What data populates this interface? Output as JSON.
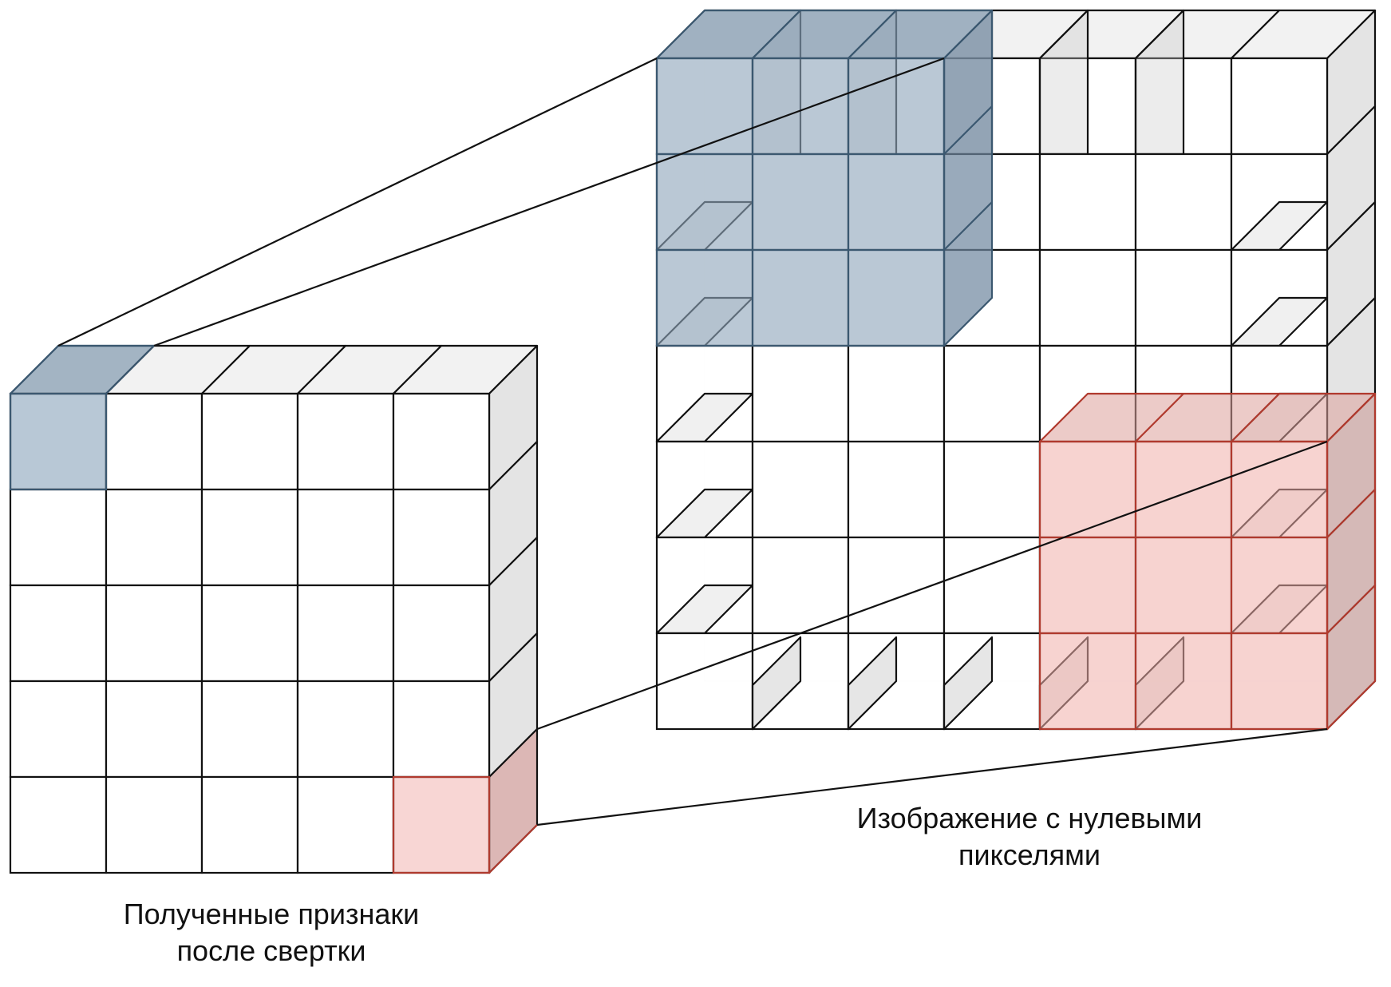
{
  "captions": {
    "output_line1": "Полученные признаки",
    "output_line2": "после свертки",
    "input_line1": "Изображение с нулевыми",
    "input_line2": "пикселями"
  },
  "diagram": {
    "output_grid": {
      "rows": 5,
      "cols": 5,
      "highlighted_cells": [
        [
          0,
          0
        ],
        [
          4,
          4
        ]
      ]
    },
    "input_grid": {
      "rows": 7,
      "cols": 7,
      "kernel_size": 3,
      "kernel_windows": [
        {
          "row": 0,
          "col": 0
        },
        {
          "row": 4,
          "col": 4
        }
      ]
    },
    "colors": {
      "line": "#111111",
      "face": "#ffffff",
      "side": "#e4e4e4",
      "top": "#f2f2f2",
      "blue_fill": "#b8c8d6",
      "blue_top": "#a3b4c3",
      "blue_side": "#95a9ba",
      "blue_edge": "#3b5870",
      "red_fill": "#f8d6d4",
      "red_top": "#e9c2c0",
      "red_side": "#dcb7b5",
      "red_edge": "#b03a2e"
    }
  }
}
